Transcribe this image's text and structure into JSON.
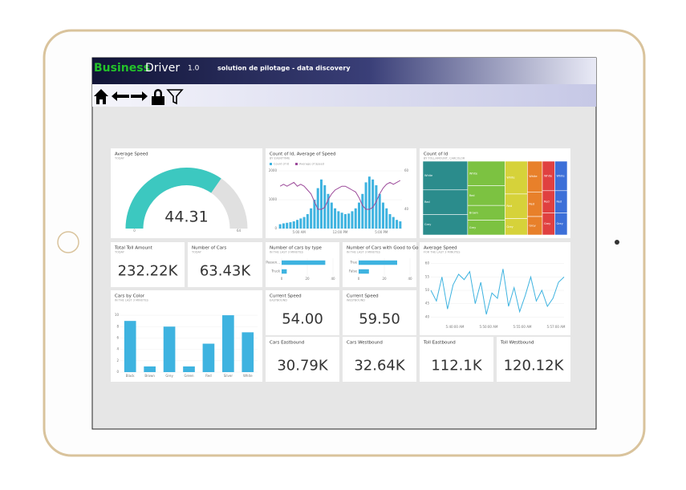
{
  "header": {
    "brand_1": "Business",
    "brand_2": "Driver",
    "version": "1.0",
    "tagline": "solution de pilotage - data discovery"
  },
  "tiles": [
    {
      "kind": "gauge",
      "title": "Average Speed",
      "subtitle": "TODAY",
      "value": 44.31,
      "min": 0,
      "max": 64,
      "color": "#3cc8c0"
    },
    {
      "kind": "combo",
      "title": "Count of Id, Average of Speed",
      "subtitle": "BY EVENTTIME",
      "legend": [
        "Count of Id",
        "Average of Speed"
      ],
      "colors": [
        "#3eb3e0",
        "#9c4a9a"
      ],
      "bars": [
        150,
        180,
        200,
        220,
        250,
        300,
        350,
        400,
        500,
        700,
        1000,
        1400,
        1700,
        1500,
        1200,
        900,
        700,
        600,
        550,
        500,
        520,
        600,
        700,
        900,
        1200,
        1600,
        1800,
        1700,
        1500,
        1200,
        900,
        700,
        500,
        400,
        300,
        250
      ],
      "line": [
        52,
        53,
        52,
        53,
        54,
        52,
        53,
        52,
        50,
        48,
        44,
        40,
        40,
        41,
        45,
        48,
        50,
        51,
        52,
        52,
        51,
        50,
        49,
        46,
        42,
        40,
        40,
        41,
        44,
        48,
        51,
        53,
        54,
        53,
        54,
        55
      ],
      "ylim": [
        0,
        2000
      ],
      "yticks": [
        0,
        1000,
        2000
      ],
      "y2lim": [
        30,
        60
      ],
      "y2ticks": [
        40,
        60
      ],
      "xlabels": [
        "5:00 AM",
        "12:00 PM",
        "5:00 PM"
      ]
    },
    {
      "kind": "treemap",
      "title": "Count of Id",
      "subtitle": "BY TOLLAMOUNT, CARCOLOR",
      "groups": [
        {
          "color": "#2b8c8c",
          "cells": [
            {
              "label": "White",
              "value": 7
            },
            {
              "label": "Red",
              "value": 6
            },
            {
              "label": "Grey",
              "value": 5
            }
          ]
        },
        {
          "color": "#7cc241",
          "cells": [
            {
              "label": "White",
              "value": 5
            },
            {
              "label": "Red",
              "value": 4
            },
            {
              "label": "Brown",
              "value": 3
            },
            {
              "label": "Grey",
              "value": 3
            }
          ]
        },
        {
          "color": "#d6d23a",
          "cells": [
            {
              "label": "White",
              "value": 4
            },
            {
              "label": "Red",
              "value": 3
            },
            {
              "label": "Grey",
              "value": 2
            }
          ]
        },
        {
          "color": "#e8802a",
          "cells": [
            {
              "label": "White",
              "value": 2.5
            },
            {
              "label": "Red",
              "value": 2
            },
            {
              "label": "Grey",
              "value": 1.5
            }
          ]
        },
        {
          "color": "#e04040",
          "cells": [
            {
              "label": "White",
              "value": 2
            },
            {
              "label": "Red",
              "value": 1.5
            },
            {
              "label": "Grey",
              "value": 1.5
            }
          ]
        },
        {
          "color": "#3c6fd8",
          "cells": [
            {
              "label": "White",
              "value": 2
            },
            {
              "label": "Red",
              "value": 1.5
            },
            {
              "label": "Grey",
              "value": 1.5
            }
          ]
        }
      ]
    },
    {
      "kind": "card",
      "title": "Total Toll Amount",
      "subtitle": "TODAY",
      "value": "232.22K"
    },
    {
      "kind": "card",
      "title": "Number of Cars",
      "subtitle": "TODAY",
      "value": "63.43K"
    },
    {
      "kind": "hbar",
      "title": "Number of cars by type",
      "subtitle": "IN THE LAST 3 MINUTES",
      "categories": [
        "Passen...",
        "Truck"
      ],
      "values": [
        34,
        4
      ],
      "xlim": [
        0,
        40
      ],
      "xticks": [
        0,
        20,
        40
      ],
      "color": "#3eb3e0"
    },
    {
      "kind": "hbar",
      "title": "Number of Cars with Good to Go",
      "subtitle": "IN THE LAST 3 MINUTES",
      "categories": [
        "True",
        "False"
      ],
      "values": [
        30,
        8
      ],
      "xlim": [
        0,
        40
      ],
      "xticks": [
        0,
        20,
        40
      ],
      "color": "#3eb3e0"
    },
    {
      "kind": "line",
      "title": "Average Speed",
      "subtitle": "FOR THE LAST 3 MINUTES",
      "values": [
        50,
        46,
        55,
        43,
        52,
        56,
        54,
        57,
        45,
        53,
        41,
        49,
        47,
        58,
        44,
        51,
        42,
        48,
        55,
        46,
        50,
        44,
        47,
        53,
        55
      ],
      "ylim": [
        38,
        62
      ],
      "yticks": [
        40,
        45,
        50,
        55,
        60
      ],
      "xlabels": [
        "5:40:00 AM",
        "5:50:00 AM",
        "5:55:00 AM",
        "5:57:00 AM"
      ],
      "color": "#3eb3e0"
    },
    {
      "kind": "vbar",
      "title": "Cars by Color",
      "subtitle": "IN THE LAST 3 MINUTES",
      "categories": [
        "Black",
        "Brown",
        "Grey",
        "Green",
        "Red",
        "Silver",
        "White"
      ],
      "values": [
        9,
        1,
        8,
        1,
        5,
        10,
        7
      ],
      "ylim": [
        0,
        11
      ],
      "yticks": [
        0,
        2,
        4,
        6,
        8,
        10
      ],
      "color": "#3eb3e0"
    },
    {
      "kind": "card",
      "title": "Current Speed",
      "subtitle": "EASTBOUND",
      "value": "54.00"
    },
    {
      "kind": "card",
      "title": "Current Speed",
      "subtitle": "WESTBOUND",
      "value": "59.50"
    },
    {
      "kind": "card",
      "title": "Cars Eastbound",
      "value": "30.79K"
    },
    {
      "kind": "card",
      "title": "Cars Westbound",
      "value": "32.64K"
    },
    {
      "kind": "card",
      "title": "Toll Eastbound",
      "value": "112.1K"
    },
    {
      "kind": "card",
      "title": "Toll Westbound",
      "value": "120.12K"
    }
  ]
}
